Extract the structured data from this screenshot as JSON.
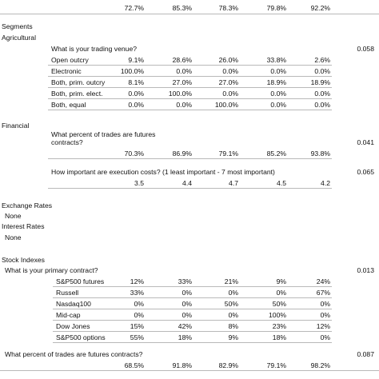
{
  "top_row": [
    "72.7%",
    "85.3%",
    "78.3%",
    "79.8%",
    "92.2%"
  ],
  "segments_label": "Segments",
  "agricultural": {
    "label": "Agricultural",
    "question": "What is your trading venue?",
    "pvalue": "0.058",
    "rows": [
      {
        "label": "Open outcry",
        "values": [
          "9.1%",
          "28.6%",
          "26.0%",
          "33.8%",
          "2.6%"
        ]
      },
      {
        "label": "Electronic",
        "values": [
          "100.0%",
          "0.0%",
          "0.0%",
          "0.0%",
          "0.0%"
        ]
      },
      {
        "label": "Both, prim. outcry",
        "values": [
          "8.1%",
          "27.0%",
          "27.0%",
          "18.9%",
          "18.9%"
        ]
      },
      {
        "label": "Both, prim. elect.",
        "values": [
          "0.0%",
          "100.0%",
          "0.0%",
          "0.0%",
          "0.0%"
        ]
      },
      {
        "label": "Both, equal",
        "values": [
          "0.0%",
          "0.0%",
          "100.0%",
          "0.0%",
          "0.0%"
        ]
      }
    ]
  },
  "financial": {
    "label": "Financial",
    "q1_line1": "What percent of trades are futures",
    "q1_line2": "contracts?",
    "q1_pvalue": "0.041",
    "q1_values": [
      "70.3%",
      "86.9%",
      "79.1%",
      "85.2%",
      "93.8%"
    ],
    "q2": "How important are execution costs? (1 least important - 7 most important)",
    "q2_pvalue": "0.065",
    "q2_values": [
      "3.5",
      "4.4",
      "4.7",
      "4.5",
      "4.2"
    ]
  },
  "exchange_rates": {
    "label": "Exchange Rates",
    "value": "None"
  },
  "interest_rates": {
    "label": "Interest Rates",
    "value": "None"
  },
  "stock_indexes": {
    "label": "Stock Indexes",
    "question": "What is your primary contract?",
    "pvalue": "0.013",
    "rows": [
      {
        "label": "S&P500 futures",
        "values": [
          "12%",
          "33%",
          "21%",
          "9%",
          "24%"
        ]
      },
      {
        "label": "Russell",
        "values": [
          "33%",
          "0%",
          "0%",
          "0%",
          "67%"
        ]
      },
      {
        "label": "Nasdaq100",
        "values": [
          "0%",
          "0%",
          "50%",
          "50%",
          "0%"
        ]
      },
      {
        "label": "Mid-cap",
        "values": [
          "0%",
          "0%",
          "0%",
          "100%",
          "0%"
        ]
      },
      {
        "label": "Dow Jones",
        "values": [
          "15%",
          "42%",
          "8%",
          "23%",
          "12%"
        ]
      },
      {
        "label": "S&P500 options",
        "values": [
          "55%",
          "18%",
          "9%",
          "18%",
          "0%"
        ]
      }
    ],
    "q2": "What percent of trades are futures contracts?",
    "q2_pvalue": "0.087",
    "q2_values": [
      "68.5%",
      "91.8%",
      "82.9%",
      "79.1%",
      "98.2%"
    ]
  }
}
